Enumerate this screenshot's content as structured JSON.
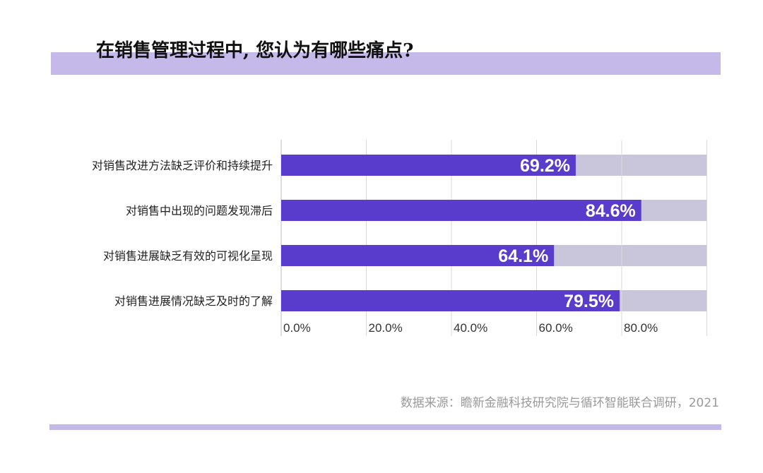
{
  "title": "在销售管理过程中, 您认为有哪些痛点?",
  "source": "数据来源：瞻新金融科技研究院与循环智能联合调研，2021",
  "colors": {
    "accent_band": "#c5b9ea",
    "bar_fill": "#5a3ccc",
    "bar_track": "#c9c6dc",
    "grid": "#d9d9d9",
    "label_text": "#222222",
    "value_text": "#ffffff"
  },
  "chart_data": {
    "type": "bar",
    "orientation": "horizontal",
    "categories": [
      "对销售改进方法缺乏评价和持续提升",
      "对销售中出现的问题发现滞后",
      "对销售进展缺乏有效的可视化呈现",
      "对销售进展情况缺乏及时的了解"
    ],
    "values": [
      69.2,
      84.6,
      64.1,
      79.5
    ],
    "value_labels": [
      "69.2%",
      "84.6%",
      "64.1%",
      "79.5%"
    ],
    "x_ticks": [
      "0.0%",
      "20.0%",
      "40.0%",
      "60.0%",
      "80.0%"
    ],
    "x_tick_values": [
      0,
      20,
      40,
      60,
      80
    ],
    "xlim": [
      0,
      100
    ],
    "grid": true,
    "legend": "none"
  }
}
